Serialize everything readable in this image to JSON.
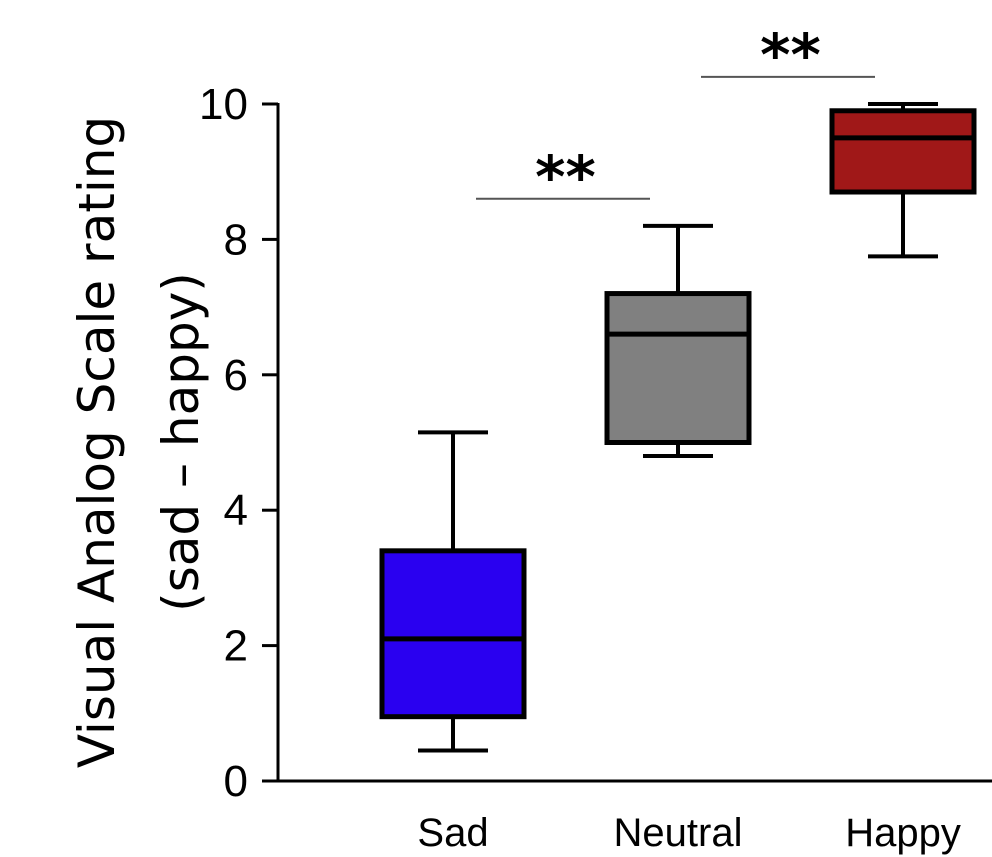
{
  "chart_data": {
    "type": "boxplot",
    "ylabel_line1": "Visual Analog Scale rating",
    "ylabel_line2": "(sad – happy)",
    "ylim": [
      0,
      10
    ],
    "yticks": [
      "0",
      "2",
      "4",
      "6",
      "8",
      "10"
    ],
    "categories": [
      "Sad",
      "Neutral",
      "Happy"
    ],
    "boxes": [
      {
        "category": "Sad",
        "min": 0.45,
        "q1": 0.95,
        "median": 2.1,
        "q3": 3.4,
        "max": 5.15,
        "color": "#2a00f0"
      },
      {
        "category": "Neutral",
        "min": 4.8,
        "q1": 5.0,
        "median": 6.6,
        "q3": 7.2,
        "max": 8.2,
        "color": "#808080"
      },
      {
        "category": "Happy",
        "min": 7.75,
        "q1": 8.7,
        "median": 9.5,
        "q3": 9.9,
        "max": 10.0,
        "color": "#a01818"
      }
    ],
    "significance": [
      {
        "from": "Sad",
        "to": "Neutral",
        "label": "**",
        "level": 8.6
      },
      {
        "from": "Neutral",
        "to": "Happy",
        "label": "**",
        "level": 10.4
      }
    ]
  }
}
